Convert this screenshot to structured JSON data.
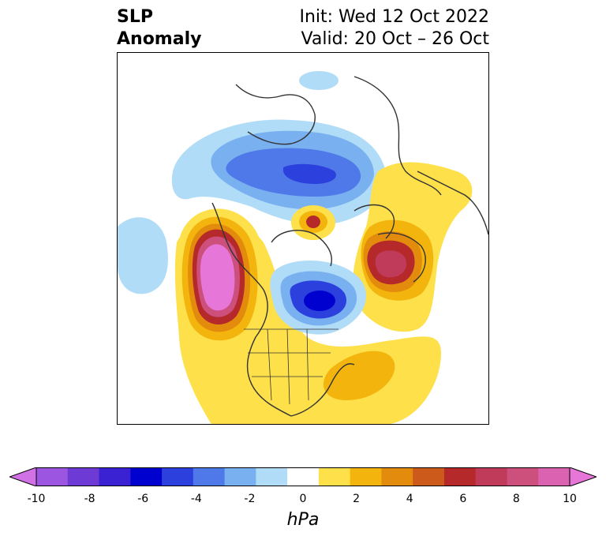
{
  "header": {
    "title_line1": "SLP",
    "title_line2": "Anomaly",
    "init_text": "Init: Wed 12 Oct 2022",
    "valid_text": "Valid: 20 Oct – 26 Oct"
  },
  "colorbar": {
    "units": "hPa",
    "tick_labels": [
      "-10",
      "-8",
      "-6",
      "-4",
      "-2",
      "0",
      "2",
      "4",
      "6",
      "8",
      "10"
    ],
    "colors": [
      "#d072e6",
      "#9c55e0",
      "#6e3ad6",
      "#3a21d2",
      "#0000cf",
      "#2b40dd",
      "#4f78e8",
      "#78b0f0",
      "#b0dcf8",
      "#ffffff",
      "#fde04a",
      "#f3b50d",
      "#e38b0c",
      "#cc5a1a",
      "#b5292a",
      "#c03a5a",
      "#cc4f7c",
      "#db62b0",
      "#e676d8"
    ]
  }
}
